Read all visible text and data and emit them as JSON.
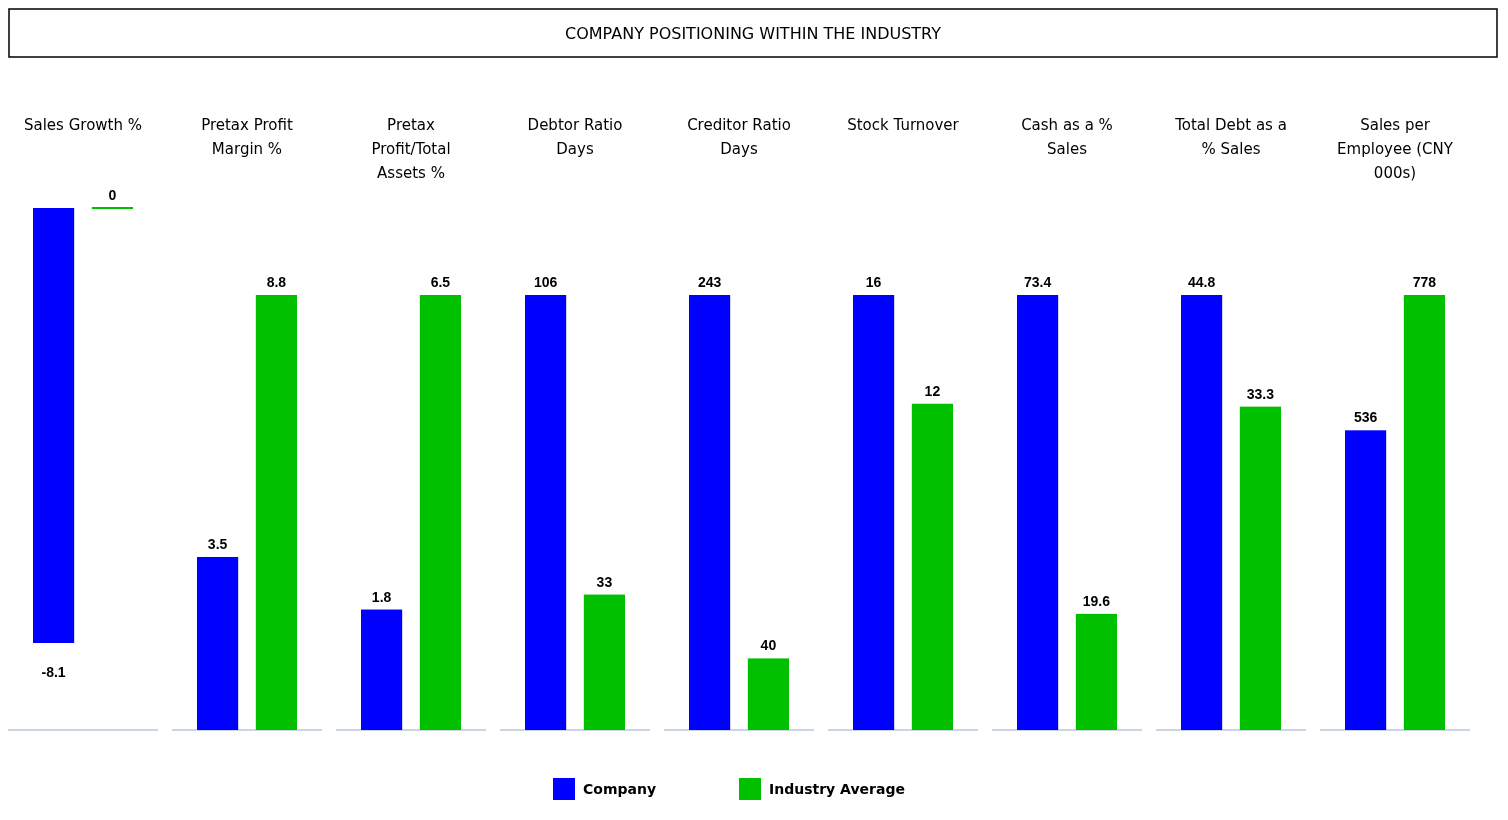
{
  "chart_data": [
    {
      "type": "other",
      "title": "COMPANY POSITIONING WITHIN THE INDUSTRY"
    },
    {
      "type": "bar",
      "title": "Sales Growth %",
      "categories": [
        null
      ],
      "data_labels": true,
      "legend": "bottom",
      "series": [
        {
          "name": "Company",
          "color": "#0000ff",
          "values": [
            -8.1
          ]
        },
        {
          "name": "Industry Average",
          "color": "#00c000",
          "values": [
            0
          ]
        }
      ]
    },
    {
      "type": "bar",
      "title": "Pretax Profit Margin %",
      "categories": [
        null
      ],
      "data_labels": true,
      "series": [
        {
          "color": "#0000ff",
          "values": [
            3.5
          ]
        },
        {
          "color": "#00c000",
          "values": [
            8.8
          ]
        }
      ]
    },
    {
      "type": "bar",
      "title": "Pretax Profit/Total Assets %",
      "categories": [
        null
      ],
      "data_labels": true,
      "series": [
        {
          "color": "#0000ff",
          "values": [
            1.8
          ]
        },
        {
          "color": "#00c000",
          "values": [
            6.5
          ]
        }
      ]
    },
    {
      "type": "bar",
      "title": "Debtor Ratio Days",
      "categories": [
        null
      ],
      "data_labels": true,
      "series": [
        {
          "color": "#0000ff",
          "values": [
            106
          ]
        },
        {
          "color": "#00c000",
          "values": [
            33
          ]
        }
      ]
    },
    {
      "type": "bar",
      "title": "Creditor Ratio Days",
      "categories": [
        null
      ],
      "data_labels": true,
      "series": [
        {
          "color": "#0000ff",
          "values": [
            243
          ]
        },
        {
          "color": "#00c000",
          "values": [
            40
          ]
        }
      ]
    },
    {
      "type": "bar",
      "title": "Stock Turnover",
      "categories": [
        null
      ],
      "data_labels": true,
      "series": [
        {
          "color": "#0000ff",
          "values": [
            16
          ]
        },
        {
          "color": "#00c000",
          "values": [
            12
          ]
        }
      ]
    },
    {
      "type": "bar",
      "title": "Cash as a % Sales",
      "categories": [
        null
      ],
      "data_labels": true,
      "series": [
        {
          "color": "#0000ff",
          "values": [
            73.4
          ]
        },
        {
          "color": "#00c000",
          "values": [
            19.6
          ]
        }
      ]
    },
    {
      "type": "bar",
      "title": "Total Debt as a % Sales",
      "categories": [
        null
      ],
      "data_labels": true,
      "series": [
        {
          "color": "#0000ff",
          "values": [
            44.8
          ]
        },
        {
          "color": "#00c000",
          "values": [
            33.3
          ]
        }
      ]
    },
    {
      "type": "bar",
      "title": "Sales per Employee (CNY 000s)",
      "categories": [
        null
      ],
      "data_labels": true,
      "series": [
        {
          "color": "#0000ff",
          "values": [
            536
          ]
        },
        {
          "color": "#00c000",
          "values": [
            778
          ]
        }
      ]
    }
  ]
}
